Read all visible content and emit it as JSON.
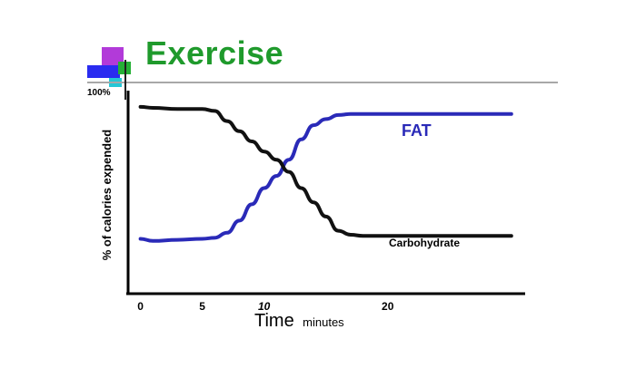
{
  "header": {
    "title": "Exercise",
    "top_label": "100%"
  },
  "chart_data": {
    "type": "line",
    "ylabel": "% of calories expended",
    "xlabel": "Time",
    "xlabel_unit": "minutes",
    "x_ticks": [
      "0",
      "5",
      "10",
      "20"
    ],
    "series": [
      {
        "name": "FAT",
        "color": "#2a2ab8",
        "points": [
          [
            0,
            27
          ],
          [
            1,
            26
          ],
          [
            3,
            26.5
          ],
          [
            5,
            27
          ],
          [
            6,
            27.5
          ],
          [
            7,
            30
          ],
          [
            8,
            36
          ],
          [
            9,
            44
          ],
          [
            10,
            52
          ],
          [
            11,
            58
          ],
          [
            12,
            66
          ],
          [
            13,
            76
          ],
          [
            14,
            83
          ],
          [
            15,
            86
          ],
          [
            16,
            88
          ],
          [
            17,
            88.5
          ],
          [
            18,
            88.5
          ],
          [
            19,
            88.5
          ],
          [
            20,
            88.5
          ],
          [
            24,
            88.5
          ],
          [
            26,
            88.5
          ],
          [
            30,
            88.5
          ]
        ]
      },
      {
        "name": "Carbohydrate",
        "color": "#111111",
        "points": [
          [
            0,
            92
          ],
          [
            1,
            91.5
          ],
          [
            3,
            91
          ],
          [
            5,
            91
          ],
          [
            6,
            90
          ],
          [
            7,
            85
          ],
          [
            8,
            80
          ],
          [
            9,
            75
          ],
          [
            10,
            70
          ],
          [
            11,
            66
          ],
          [
            12,
            60
          ],
          [
            13,
            52
          ],
          [
            14,
            45
          ],
          [
            15,
            38
          ],
          [
            16,
            31
          ],
          [
            17,
            29
          ],
          [
            18,
            28.5
          ],
          [
            19,
            28.5
          ],
          [
            20,
            28.5
          ],
          [
            24,
            28.5
          ],
          [
            26,
            28.5
          ],
          [
            30,
            28.5
          ]
        ]
      }
    ],
    "xlim": [
      -1,
      32
    ],
    "ylim": [
      0,
      100
    ],
    "x_tick_values": [
      0,
      5,
      10,
      20
    ],
    "grid": false,
    "legend": "inline labels"
  }
}
